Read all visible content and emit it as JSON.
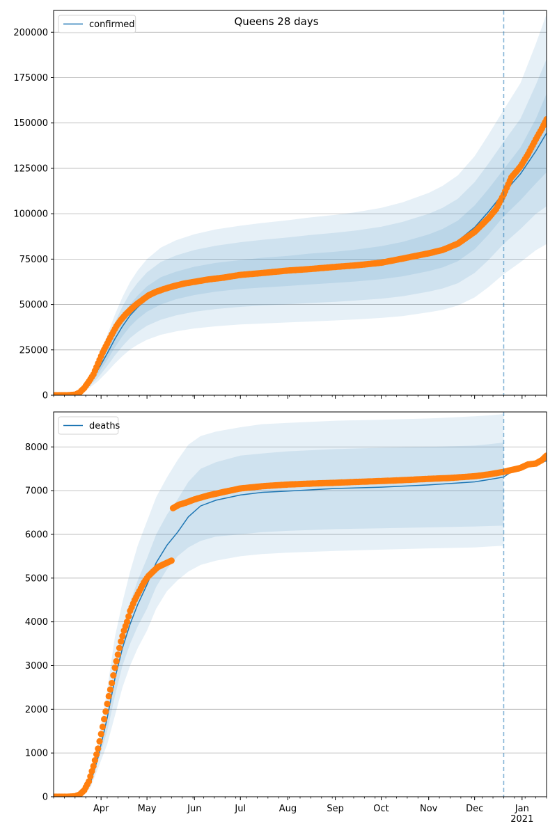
{
  "figure": {
    "title": "Queens 28 days"
  },
  "colors": {
    "model": "#1f77b4",
    "observed": "#ff7f0e",
    "band": "#1f77b4",
    "grid": "#b0b0b0",
    "forecast_line": "#1f77b4"
  },
  "chart_data": [
    {
      "type": "line",
      "panel": "top",
      "title": "",
      "xlabel": "",
      "ylabel": "",
      "legend": {
        "entries": [
          "confirmed"
        ],
        "placement": "top-left"
      },
      "grid": "horizontal",
      "x_range": [
        "2020-03-01",
        "2021-01-17"
      ],
      "ylim": [
        0,
        212000
      ],
      "y_ticks": [
        0,
        25000,
        50000,
        75000,
        100000,
        125000,
        150000,
        175000,
        200000
      ],
      "y_tick_labels": [
        "0",
        "25000",
        "50000",
        "75000",
        "100000",
        "125000",
        "150000",
        "175000",
        "200000"
      ],
      "forecast_start": "2020-12-20",
      "model": {
        "name": "confirmed",
        "x": [
          "2020-03-01",
          "2020-03-10",
          "2020-03-15",
          "2020-03-20",
          "2020-03-25",
          "2020-03-30",
          "2020-04-05",
          "2020-04-10",
          "2020-04-15",
          "2020-04-20",
          "2020-04-25",
          "2020-05-01",
          "2020-05-10",
          "2020-05-20",
          "2020-06-01",
          "2020-06-15",
          "2020-07-01",
          "2020-07-15",
          "2020-08-01",
          "2020-08-15",
          "2020-09-01",
          "2020-09-15",
          "2020-10-01",
          "2020-10-15",
          "2020-11-01",
          "2020-11-10",
          "2020-11-20",
          "2020-12-01",
          "2020-12-10",
          "2020-12-20",
          "2020-12-31",
          "2021-01-10",
          "2021-01-17"
        ],
        "y": [
          0,
          0,
          300,
          3000,
          8000,
          14000,
          23000,
          31000,
          38000,
          44000,
          48500,
          53000,
          57500,
          60500,
          63000,
          65000,
          66500,
          67500,
          68500,
          69500,
          70500,
          71500,
          73000,
          75000,
          78500,
          81000,
          85000,
          92500,
          101000,
          111500,
          122000,
          134500,
          144500
        ]
      },
      "bands": [
        {
          "lower": [
            0,
            0,
            200,
            2400,
            6600,
            11700,
            19400,
            26400,
            32600,
            37900,
            42000,
            46000,
            50000,
            52900,
            55200,
            57100,
            58500,
            59300,
            60200,
            61000,
            61900,
            62700,
            63900,
            65500,
            68400,
            70400,
            73800,
            80400,
            88400,
            98500,
            107500,
            116700,
            122800
          ],
          "upper": [
            0,
            0,
            400,
            3600,
            9400,
            16300,
            26600,
            35600,
            43400,
            50100,
            55000,
            60000,
            65000,
            68100,
            70800,
            72900,
            74500,
            75700,
            76800,
            78000,
            79100,
            80300,
            82100,
            84500,
            88600,
            91600,
            96200,
            104600,
            113600,
            124500,
            136500,
            152300,
            166200
          ]
        },
        {
          "lower": [
            0,
            0,
            150,
            2000,
            5500,
            9700,
            16100,
            21900,
            27000,
            31500,
            34900,
            38300,
            41600,
            44000,
            46000,
            47500,
            48700,
            49400,
            50100,
            50800,
            51500,
            52200,
            53200,
            54500,
            57100,
            58800,
            61700,
            67400,
            74400,
            83400,
            91600,
            99900,
            104100
          ],
          "upper": [
            0,
            0,
            450,
            4000,
            10500,
            18300,
            30000,
            40100,
            48900,
            56400,
            62100,
            67700,
            73400,
            77000,
            80000,
            82400,
            84300,
            85600,
            86900,
            88200,
            89500,
            90800,
            92800,
            95500,
            100000,
            103200,
            108200,
            117400,
            127600,
            139600,
            152400,
            171100,
            185200
          ]
        },
        {
          "lower": [
            0,
            0,
            100,
            1600,
            4400,
            7800,
            12900,
            17500,
            21600,
            25200,
            27900,
            30600,
            33300,
            35200,
            36800,
            38000,
            39000,
            39500,
            40100,
            40600,
            41200,
            41800,
            42600,
            43600,
            45700,
            47000,
            49400,
            53900,
            59500,
            66700,
            73300,
            79900,
            83300
          ],
          "upper": [
            0,
            0,
            500,
            4400,
            11600,
            20200,
            33200,
            44400,
            54100,
            62400,
            68800,
            75000,
            81300,
            85400,
            88700,
            91400,
            93400,
            94900,
            96400,
            97900,
            99400,
            100900,
            103200,
            106300,
            111500,
            115300,
            121100,
            131700,
            143400,
            157200,
            172000,
            193600,
            210000
          ]
        }
      ],
      "observed": {
        "name": "observed",
        "x": [
          "2020-03-01",
          "2020-03-10",
          "2020-03-15",
          "2020-03-18",
          "2020-03-21",
          "2020-03-24",
          "2020-03-27",
          "2020-03-30",
          "2020-04-02",
          "2020-04-05",
          "2020-04-08",
          "2020-04-11",
          "2020-04-14",
          "2020-04-17",
          "2020-04-20",
          "2020-04-24",
          "2020-04-28",
          "2020-05-02",
          "2020-05-07",
          "2020-05-12",
          "2020-05-18",
          "2020-05-25",
          "2020-06-01",
          "2020-06-10",
          "2020-06-20",
          "2020-07-01",
          "2020-07-15",
          "2020-08-01",
          "2020-08-15",
          "2020-09-01",
          "2020-09-15",
          "2020-10-01",
          "2020-10-15",
          "2020-11-01",
          "2020-11-10",
          "2020-11-20",
          "2020-12-01",
          "2020-12-10",
          "2020-12-15",
          "2020-12-20",
          "2020-12-25",
          "2020-12-31",
          "2021-01-05",
          "2021-01-10",
          "2021-01-14",
          "2021-01-17"
        ],
        "y": [
          0,
          0,
          300,
          1500,
          4000,
          7500,
          11500,
          17500,
          23500,
          28500,
          33500,
          38000,
          41500,
          44500,
          47000,
          50000,
          52500,
          55000,
          57000,
          58500,
          60000,
          61500,
          62500,
          63800,
          64800,
          66300,
          67300,
          68700,
          69500,
          70700,
          71600,
          73000,
          75300,
          78200,
          80000,
          83500,
          90000,
          97500,
          102500,
          110500,
          120000,
          126000,
          133000,
          141000,
          147000,
          152000
        ]
      }
    },
    {
      "type": "line",
      "panel": "bottom",
      "title": "",
      "xlabel": "",
      "ylabel": "",
      "legend": {
        "entries": [
          "deaths"
        ],
        "placement": "top-left"
      },
      "grid": "horizontal",
      "x_range": [
        "2020-03-01",
        "2021-01-17"
      ],
      "ylim": [
        0,
        8800
      ],
      "y_ticks": [
        0,
        1000,
        2000,
        3000,
        4000,
        5000,
        6000,
        7000,
        8000
      ],
      "y_tick_labels": [
        "0",
        "1000",
        "2000",
        "3000",
        "4000",
        "5000",
        "6000",
        "7000",
        "8000"
      ],
      "forecast_start": "2020-12-20",
      "x_tick_labels": [
        "Apr",
        "May",
        "Jun",
        "Jul",
        "Aug",
        "Sep",
        "Oct",
        "Nov",
        "Dec",
        "Jan\n2021"
      ],
      "x_tick_dates": [
        "2020-04-01",
        "2020-05-01",
        "2020-06-01",
        "2020-07-01",
        "2020-08-01",
        "2020-09-01",
        "2020-10-01",
        "2020-11-01",
        "2020-12-01",
        "2021-01-01"
      ],
      "model": {
        "name": "deaths",
        "x": [
          "2020-03-01",
          "2020-03-15",
          "2020-03-20",
          "2020-03-25",
          "2020-03-30",
          "2020-04-05",
          "2020-04-10",
          "2020-04-15",
          "2020-04-20",
          "2020-04-25",
          "2020-05-01",
          "2020-05-07",
          "2020-05-14",
          "2020-05-21",
          "2020-05-28",
          "2020-06-05",
          "2020-06-15",
          "2020-07-01",
          "2020-07-15",
          "2020-08-01",
          "2020-09-01",
          "2020-10-01",
          "2020-11-01",
          "2020-12-01",
          "2020-12-10",
          "2020-12-20",
          "2020-12-25",
          "2021-01-01",
          "2021-01-10",
          "2021-01-17"
        ],
        "y": [
          0,
          0,
          50,
          300,
          900,
          1800,
          2700,
          3400,
          3950,
          4400,
          4850,
          5350,
          5750,
          6050,
          6400,
          6650,
          6780,
          6900,
          6960,
          6990,
          7050,
          7080,
          7130,
          7200,
          7250,
          7310,
          7430,
          7530,
          7610,
          7680
        ]
      },
      "bands": [
        {
          "lower": [
            0,
            0,
            40,
            250,
            800,
            1500,
            2300,
            3000,
            3500,
            3900,
            4300,
            4800,
            5200,
            5500,
            5700,
            5850,
            5950,
            6000,
            6050,
            6080,
            6120,
            6140,
            6160,
            6180,
            6190,
            6200
          ],
          "upper": [
            0,
            0,
            60,
            370,
            1000,
            2000,
            3050,
            3850,
            4450,
            4950,
            5450,
            6000,
            6450,
            6800,
            7200,
            7500,
            7650,
            7800,
            7850,
            7900,
            7950,
            7980,
            8000,
            8030,
            8060,
            8100
          ]
        },
        {
          "lower": [
            0,
            0,
            30,
            200,
            650,
            1200,
            1850,
            2500,
            3000,
            3400,
            3800,
            4300,
            4700,
            4950,
            5150,
            5300,
            5400,
            5500,
            5550,
            5580,
            5620,
            5650,
            5680,
            5700,
            5720,
            5740
          ],
          "upper": [
            0,
            0,
            80,
            450,
            1250,
            2450,
            3650,
            4450,
            5150,
            5750,
            6300,
            6850,
            7300,
            7700,
            8050,
            8250,
            8350,
            8450,
            8520,
            8550,
            8600,
            8620,
            8650,
            8700,
            8720,
            8750
          ]
        }
      ],
      "band_x": [
        "2020-03-01",
        "2020-03-15",
        "2020-03-20",
        "2020-03-25",
        "2020-03-30",
        "2020-04-05",
        "2020-04-10",
        "2020-04-15",
        "2020-04-20",
        "2020-04-25",
        "2020-05-01",
        "2020-05-07",
        "2020-05-14",
        "2020-05-21",
        "2020-05-28",
        "2020-06-05",
        "2020-06-15",
        "2020-07-01",
        "2020-07-15",
        "2020-08-01",
        "2020-09-01",
        "2020-10-01",
        "2020-11-01",
        "2020-12-01",
        "2020-12-10",
        "2020-12-20"
      ],
      "observed": {
        "name": "observed",
        "x": [
          "2020-03-01",
          "2020-03-10",
          "2020-03-15",
          "2020-03-18",
          "2020-03-21",
          "2020-03-24",
          "2020-03-27",
          "2020-03-30",
          "2020-04-02",
          "2020-04-04",
          "2020-04-06",
          "2020-04-08",
          "2020-04-10",
          "2020-04-12",
          "2020-04-14",
          "2020-04-16",
          "2020-04-18",
          "2020-04-20",
          "2020-04-23",
          "2020-04-26",
          "2020-04-29",
          "2020-05-02",
          "2020-05-05",
          "2020-05-08",
          "2020-05-11",
          "2020-05-14",
          "2020-05-17"
        ],
        "y": [
          0,
          0,
          10,
          50,
          150,
          350,
          700,
          1100,
          1600,
          1950,
          2300,
          2600,
          2950,
          3250,
          3550,
          3800,
          4000,
          4250,
          4500,
          4700,
          4900,
          5050,
          5150,
          5250,
          5300,
          5350,
          5400
        ]
      },
      "observed_jump": {
        "x": [
          "2020-05-18",
          "2020-05-22",
          "2020-05-26",
          "2020-06-01",
          "2020-06-10",
          "2020-06-20",
          "2020-07-01",
          "2020-07-15",
          "2020-08-01",
          "2020-08-15",
          "2020-09-01",
          "2020-09-15",
          "2020-10-01",
          "2020-10-15",
          "2020-11-01",
          "2020-11-15",
          "2020-12-01",
          "2020-12-10",
          "2020-12-20",
          "2020-12-31",
          "2021-01-05",
          "2021-01-10",
          "2021-01-14",
          "2021-01-17"
        ],
        "y": [
          6600,
          6680,
          6720,
          6800,
          6890,
          6970,
          7050,
          7100,
          7140,
          7160,
          7180,
          7200,
          7220,
          7240,
          7270,
          7290,
          7330,
          7370,
          7430,
          7520,
          7600,
          7620,
          7700,
          7800
        ]
      }
    }
  ]
}
